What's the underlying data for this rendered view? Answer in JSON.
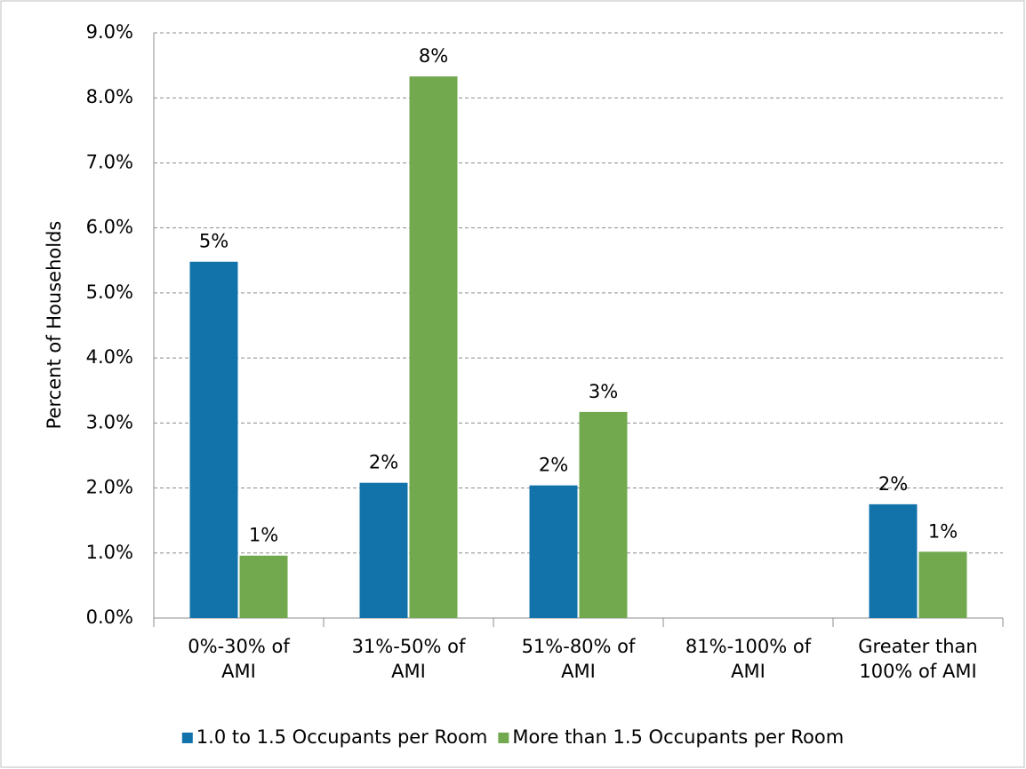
{
  "chart_data": {
    "type": "bar",
    "y_label": "Percent of Households",
    "categories": [
      "0%-30% of\nAMI",
      "31%-50% of\nAMI",
      "51%-80% of\nAMI",
      "81%-100% of\nAMI",
      "Greater than\n100% of AMI"
    ],
    "series": [
      {
        "name": "1.0 to 1.5 Occupants per Room",
        "color": "#1273ab",
        "values": [
          5.48,
          2.08,
          2.04,
          null,
          1.75
        ],
        "value_labels": [
          "5%",
          "2%",
          "2%",
          null,
          "2%"
        ]
      },
      {
        "name": "More than 1.5 Occupants per Room",
        "color": "#72a94f",
        "values": [
          0.96,
          8.33,
          3.17,
          null,
          1.02
        ],
        "value_labels": [
          "1%",
          "8%",
          "3%",
          null,
          "1%"
        ]
      }
    ],
    "ylim": [
      0,
      9
    ],
    "yticks": [
      {
        "value": 0,
        "label": "0.0%"
      },
      {
        "value": 1,
        "label": "1.0%"
      },
      {
        "value": 2,
        "label": "2.0%"
      },
      {
        "value": 3,
        "label": "3.0%"
      },
      {
        "value": 4,
        "label": "4.0%"
      },
      {
        "value": 5,
        "label": "5.0%"
      },
      {
        "value": 6,
        "label": "6.0%"
      },
      {
        "value": 7,
        "label": "7.0%"
      },
      {
        "value": 8,
        "label": "8.0%"
      },
      {
        "value": 9,
        "label": "9.0%"
      }
    ],
    "grid": true,
    "legend": "bottom"
  }
}
